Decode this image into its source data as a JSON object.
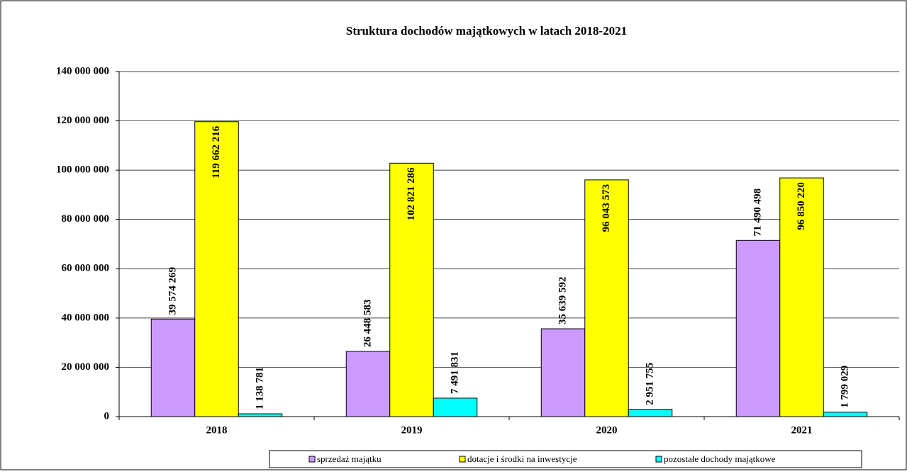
{
  "chart_data": {
    "type": "bar",
    "title": "Struktura dochodów majątkowych w latach 2018-2021",
    "categories": [
      "2018",
      "2019",
      "2020",
      "2021"
    ],
    "series": [
      {
        "name": "sprzedaż majątku",
        "color": "#cc99ff",
        "values": [
          39574269,
          26448583,
          35639592,
          71490498
        ],
        "value_labels": [
          "39 574 269",
          "26 448 583",
          "35 639 592",
          "71 490 498"
        ]
      },
      {
        "name": "dotacje i środki na inwestycje",
        "color": "#ffff00",
        "values": [
          119662216,
          102821286,
          96043573,
          96850220
        ],
        "value_labels": [
          "119 662 216",
          "102 821 286",
          "96 043 573",
          "96 850 220"
        ]
      },
      {
        "name": "pozostałe dochody majątkowe",
        "color": "#00ffff",
        "values": [
          1138781,
          7491831,
          2951755,
          1799029
        ],
        "value_labels": [
          "1 138 781",
          "7 491 831",
          "2 951 755",
          "1 799 029"
        ]
      }
    ],
    "ylim": [
      0,
      140000000
    ],
    "yticks": [
      0,
      {
        "value": 20000000,
        "label": "20 000 000"
      },
      {
        "value": 40000000,
        "label": "40 000 000"
      },
      {
        "value": 60000000,
        "label": "60 000 000"
      },
      {
        "value": 80000000,
        "label": "80 000 000"
      },
      {
        "value": 100000000,
        "label": "100 000 000"
      },
      {
        "value": 120000000,
        "label": "120 000 000"
      },
      {
        "value": 140000000,
        "label": "140 000 000"
      }
    ],
    "grid": true,
    "legend": "bottom"
  }
}
